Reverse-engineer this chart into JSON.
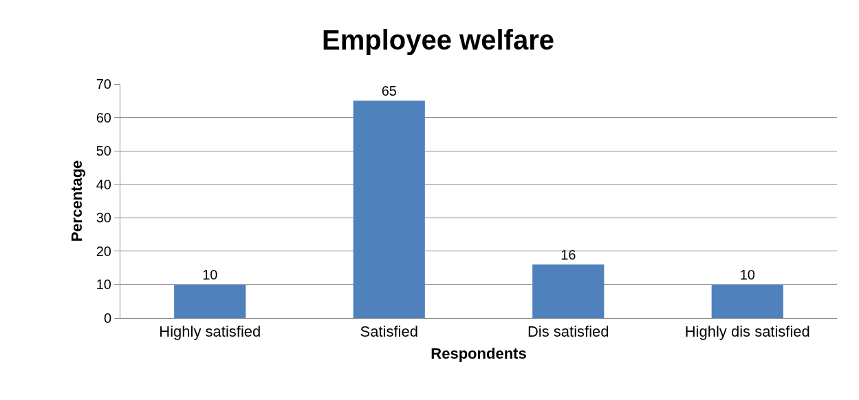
{
  "chart_data": {
    "type": "bar",
    "title": "Employee welfare",
    "xlabel": "Respondents",
    "ylabel": "Percentage",
    "categories": [
      "Highly satisfied",
      "Satisfied",
      "Dis satisfied",
      "Highly dis satisfied"
    ],
    "values": [
      10,
      65,
      16,
      10
    ],
    "color": "#4f81bd",
    "ylim": [
      0,
      70
    ],
    "yticks": [
      0,
      10,
      20,
      30,
      40,
      50,
      60,
      70
    ],
    "grid": "y",
    "data_labels": true
  }
}
